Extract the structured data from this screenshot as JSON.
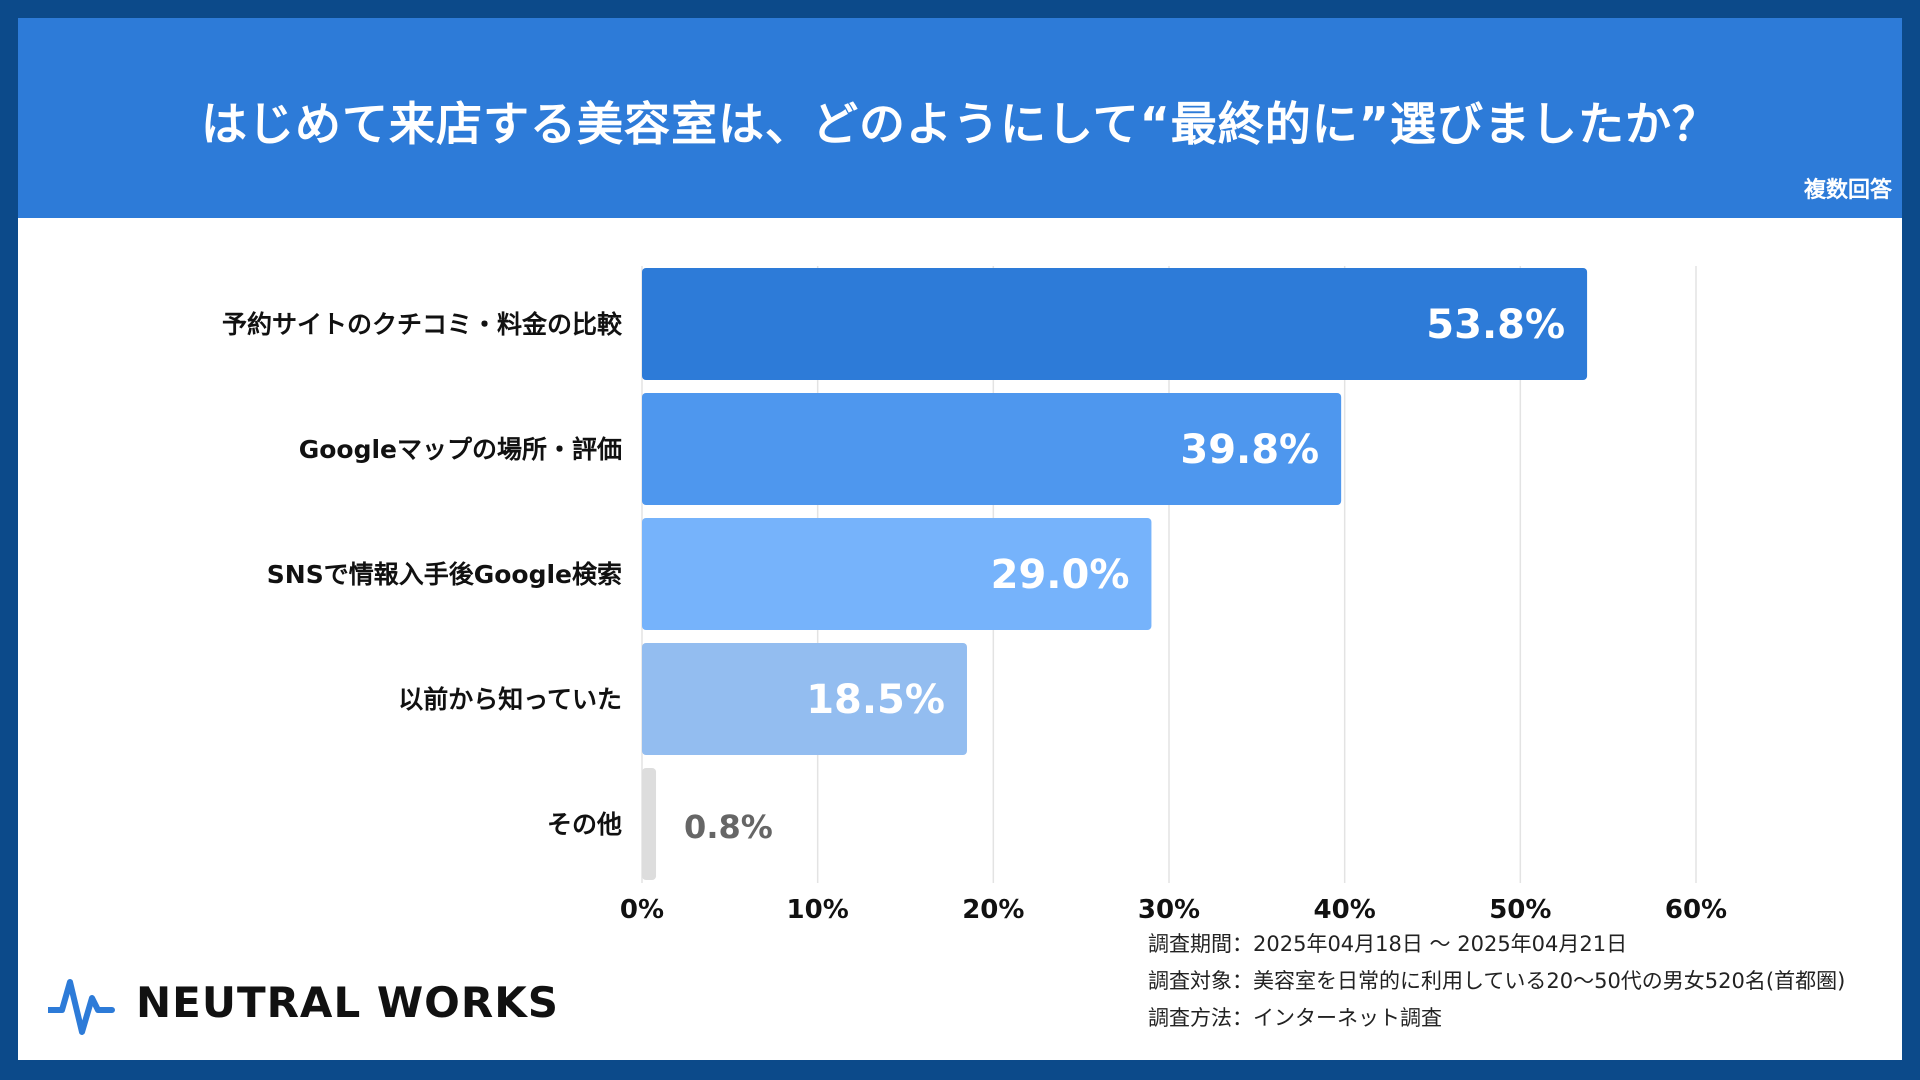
{
  "header": {
    "title": "はじめて来店する美容室は、どのようにして“最終的に”選びましたか？",
    "note": "複数回答"
  },
  "chart_data": {
    "type": "bar",
    "orientation": "horizontal",
    "categories": [
      "予約サイトのクチコミ・料金の比較",
      "Googleマップの場所・評価",
      "SNSで情報入手後Google検索",
      "以前から知っていた",
      "その他"
    ],
    "values": [
      53.8,
      39.8,
      29.0,
      18.5,
      0.8
    ],
    "value_labels": [
      "53.8%",
      "39.8%",
      "29.0%",
      "18.5%",
      "0.8%"
    ],
    "xlim": [
      0,
      60
    ],
    "xticks": [
      0,
      10,
      20,
      30,
      40,
      50,
      60
    ],
    "xtick_labels": [
      "0%",
      "10%",
      "20%",
      "30%",
      "40%",
      "50%",
      "60%"
    ],
    "grid": "vertical",
    "colors": [
      "#2d7bd8",
      "#4e97ee",
      "#76b3fb",
      "#93bdf0",
      "#dddddd"
    ]
  },
  "survey": {
    "period": "調査期間：2025年04月18日 〜 2025年04月21日",
    "target": "調査対象：美容室を日常的に利用している20〜50代の男女520名(首都圏)",
    "method": "調査方法：インターネット調査"
  },
  "brand": {
    "name": "NEUTRAL WORKS",
    "logo_icon": "heartbeat-line-icon",
    "accent": "#2d7bd8"
  }
}
